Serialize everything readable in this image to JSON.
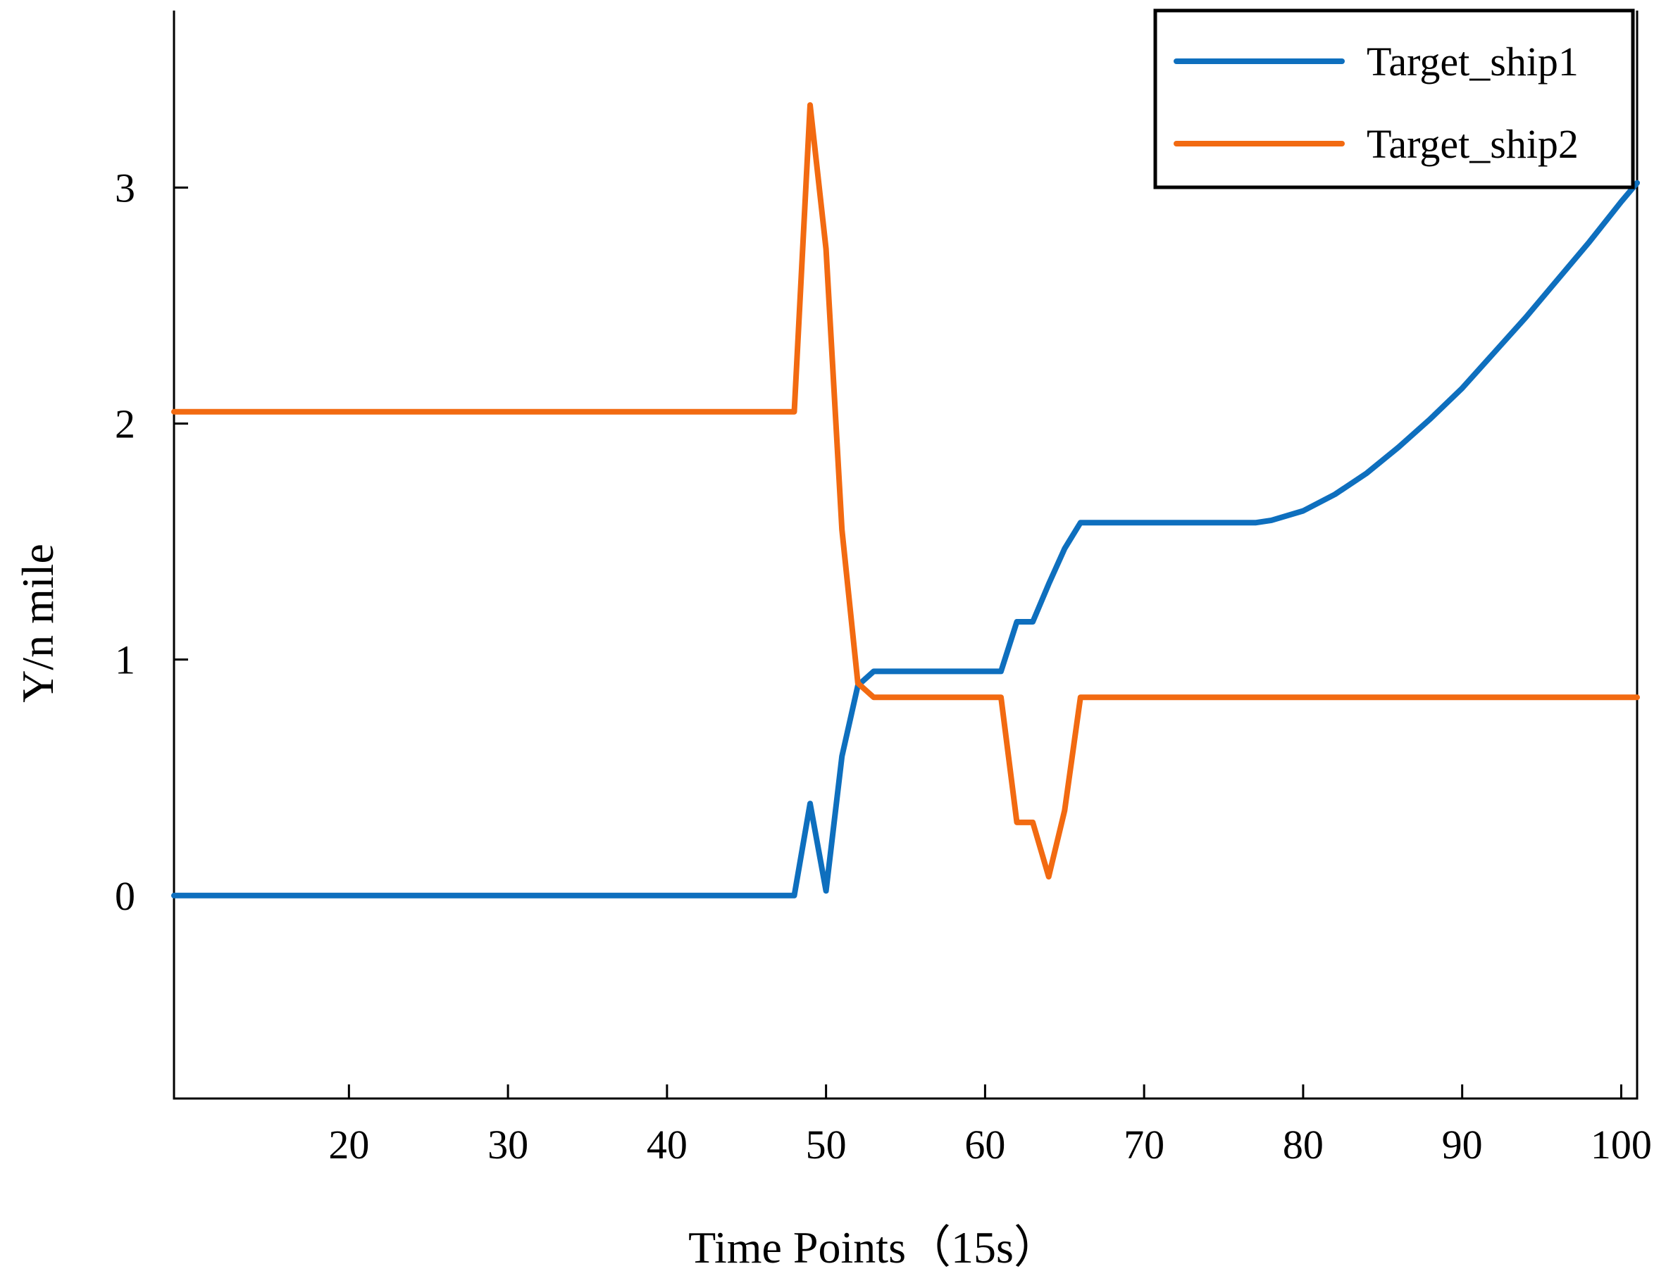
{
  "chart_data": {
    "type": "line",
    "title": "",
    "xlabel": "Time Points（15s）",
    "ylabel": "Y/n mile",
    "xlim": [
      9,
      101
    ],
    "ylim": [
      -0.86,
      3.75
    ],
    "xticks": [
      20,
      30,
      40,
      50,
      60,
      70,
      80,
      90,
      100
    ],
    "yticks": [
      0,
      1,
      2,
      3
    ],
    "grid": false,
    "legend_position": "top-right",
    "series": [
      {
        "name": "Target_ship1",
        "color": "#0E6FBE",
        "x": [
          9,
          48,
          49,
          50,
          51,
          52,
          53,
          54,
          55,
          56,
          57,
          58,
          59,
          60,
          61,
          62,
          63,
          64,
          65,
          66,
          68,
          70,
          72,
          74,
          76,
          77,
          78,
          80,
          82,
          84,
          86,
          88,
          90,
          92,
          94,
          96,
          98,
          100,
          101
        ],
        "y": [
          0,
          0,
          0.39,
          0.02,
          0.59,
          0.89,
          0.95,
          0.95,
          0.95,
          0.95,
          0.95,
          0.95,
          0.95,
          0.95,
          0.95,
          1.16,
          1.16,
          1.32,
          1.47,
          1.58,
          1.58,
          1.58,
          1.58,
          1.58,
          1.58,
          1.58,
          1.59,
          1.63,
          1.7,
          1.79,
          1.9,
          2.02,
          2.15,
          2.3,
          2.45,
          2.61,
          2.77,
          2.94,
          3.02
        ]
      },
      {
        "name": "Target_ship2",
        "color": "#F26A11",
        "x": [
          9,
          48,
          49,
          50,
          51,
          52,
          53,
          54,
          55,
          56,
          57,
          58,
          59,
          60,
          61,
          62,
          63,
          64,
          65,
          66,
          70,
          80,
          90,
          101
        ],
        "y": [
          2.05,
          2.05,
          3.35,
          2.74,
          1.55,
          0.9,
          0.84,
          0.84,
          0.84,
          0.84,
          0.84,
          0.84,
          0.84,
          0.84,
          0.84,
          0.31,
          0.31,
          0.08,
          0.36,
          0.84,
          0.84,
          0.84,
          0.84,
          0.84
        ]
      }
    ]
  }
}
